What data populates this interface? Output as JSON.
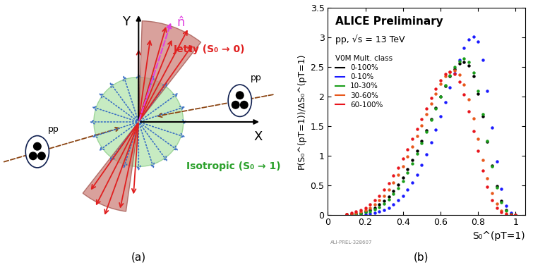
{
  "diagram": {
    "axes": {
      "x": "X",
      "y": "Y"
    },
    "thrust_axis": "n̂",
    "jetty": "Jetty (S₀ → 0)",
    "isotropic": "Isotropic (S₀ → 1)",
    "beams": [
      "pp",
      "pp"
    ]
  },
  "captions": [
    "(a)",
    "(b)"
  ],
  "chart_data": {
    "type": "scatter",
    "annotations": [
      "ALICE Preliminary",
      "pp, √s = 13 TeV"
    ],
    "watermark": "ALI-PREL-328607",
    "x_label": "S₀^(pT=1)",
    "y_label": "P(S₀^(pT=1))/ΔS₀^(pT=1)",
    "legend_title": "V0M Mult. class",
    "legend": "upper left",
    "marker": "o",
    "xlim": [
      0,
      1.05
    ],
    "xticks": [
      0,
      0.2,
      0.4,
      0.6,
      0.8,
      1
    ],
    "ylim": [
      0,
      3.5
    ],
    "yticks": [
      0,
      0.5,
      1,
      1.5,
      2,
      2.5,
      3,
      3.5
    ],
    "x": [
      0.1,
      0.125,
      0.15,
      0.175,
      0.2,
      0.225,
      0.25,
      0.275,
      0.3,
      0.325,
      0.35,
      0.375,
      0.4,
      0.425,
      0.45,
      0.475,
      0.5,
      0.525,
      0.55,
      0.575,
      0.6,
      0.625,
      0.65,
      0.675,
      0.7,
      0.725,
      0.75,
      0.775,
      0.8,
      0.825,
      0.85,
      0.875,
      0.9,
      0.925,
      0.95,
      0.975,
      1.0
    ],
    "series": [
      {
        "name": "0-100%",
        "color": "#000000",
        "values": [
          0.005,
          0.01,
          0.02,
          0.03,
          0.05,
          0.08,
          0.12,
          0.17,
          0.23,
          0.31,
          0.4,
          0.51,
          0.63,
          0.77,
          0.92,
          1.08,
          1.25,
          1.43,
          1.62,
          1.81,
          2.0,
          2.18,
          2.34,
          2.47,
          2.56,
          2.59,
          2.53,
          2.35,
          2.05,
          1.67,
          1.24,
          0.83,
          0.48,
          0.23,
          0.08,
          0.02,
          0
        ]
      },
      {
        "name": "0-10%",
        "color": "#1a1aff",
        "values": [
          0,
          0,
          0,
          0.005,
          0.01,
          0.02,
          0.03,
          0.05,
          0.08,
          0.12,
          0.17,
          0.24,
          0.32,
          0.42,
          0.54,
          0.68,
          0.84,
          1.02,
          1.22,
          1.44,
          1.67,
          1.91,
          2.15,
          2.39,
          2.62,
          2.82,
          2.97,
          3.02,
          2.93,
          2.62,
          2.1,
          1.48,
          0.9,
          0.44,
          0.15,
          0.03,
          0
        ]
      },
      {
        "name": "10-30%",
        "color": "#1a9e1a",
        "values": [
          0,
          0.005,
          0.01,
          0.02,
          0.04,
          0.06,
          0.09,
          0.13,
          0.19,
          0.26,
          0.35,
          0.45,
          0.57,
          0.71,
          0.86,
          1.03,
          1.21,
          1.4,
          1.6,
          1.8,
          2.0,
          2.19,
          2.36,
          2.5,
          2.6,
          2.64,
          2.58,
          2.4,
          2.1,
          1.7,
          1.25,
          0.82,
          0.46,
          0.21,
          0.07,
          0.01,
          0
        ]
      },
      {
        "name": "30-60%",
        "color": "#e8581c",
        "values": [
          0.005,
          0.015,
          0.03,
          0.05,
          0.08,
          0.12,
          0.17,
          0.24,
          0.32,
          0.42,
          0.54,
          0.67,
          0.82,
          0.98,
          1.15,
          1.33,
          1.51,
          1.7,
          1.88,
          2.05,
          2.21,
          2.34,
          2.42,
          2.44,
          2.37,
          2.2,
          1.95,
          1.63,
          1.28,
          0.93,
          0.62,
          0.36,
          0.18,
          0.07,
          0.02,
          0,
          0
        ]
      },
      {
        "name": "60-100%",
        "color": "#e8141c",
        "values": [
          0.01,
          0.03,
          0.05,
          0.08,
          0.12,
          0.17,
          0.24,
          0.32,
          0.42,
          0.53,
          0.66,
          0.8,
          0.95,
          1.11,
          1.28,
          1.45,
          1.62,
          1.8,
          1.97,
          2.13,
          2.28,
          2.38,
          2.42,
          2.38,
          2.25,
          2.03,
          1.75,
          1.42,
          1.08,
          0.75,
          0.47,
          0.25,
          0.11,
          0.04,
          0.01,
          0,
          0
        ]
      }
    ]
  }
}
